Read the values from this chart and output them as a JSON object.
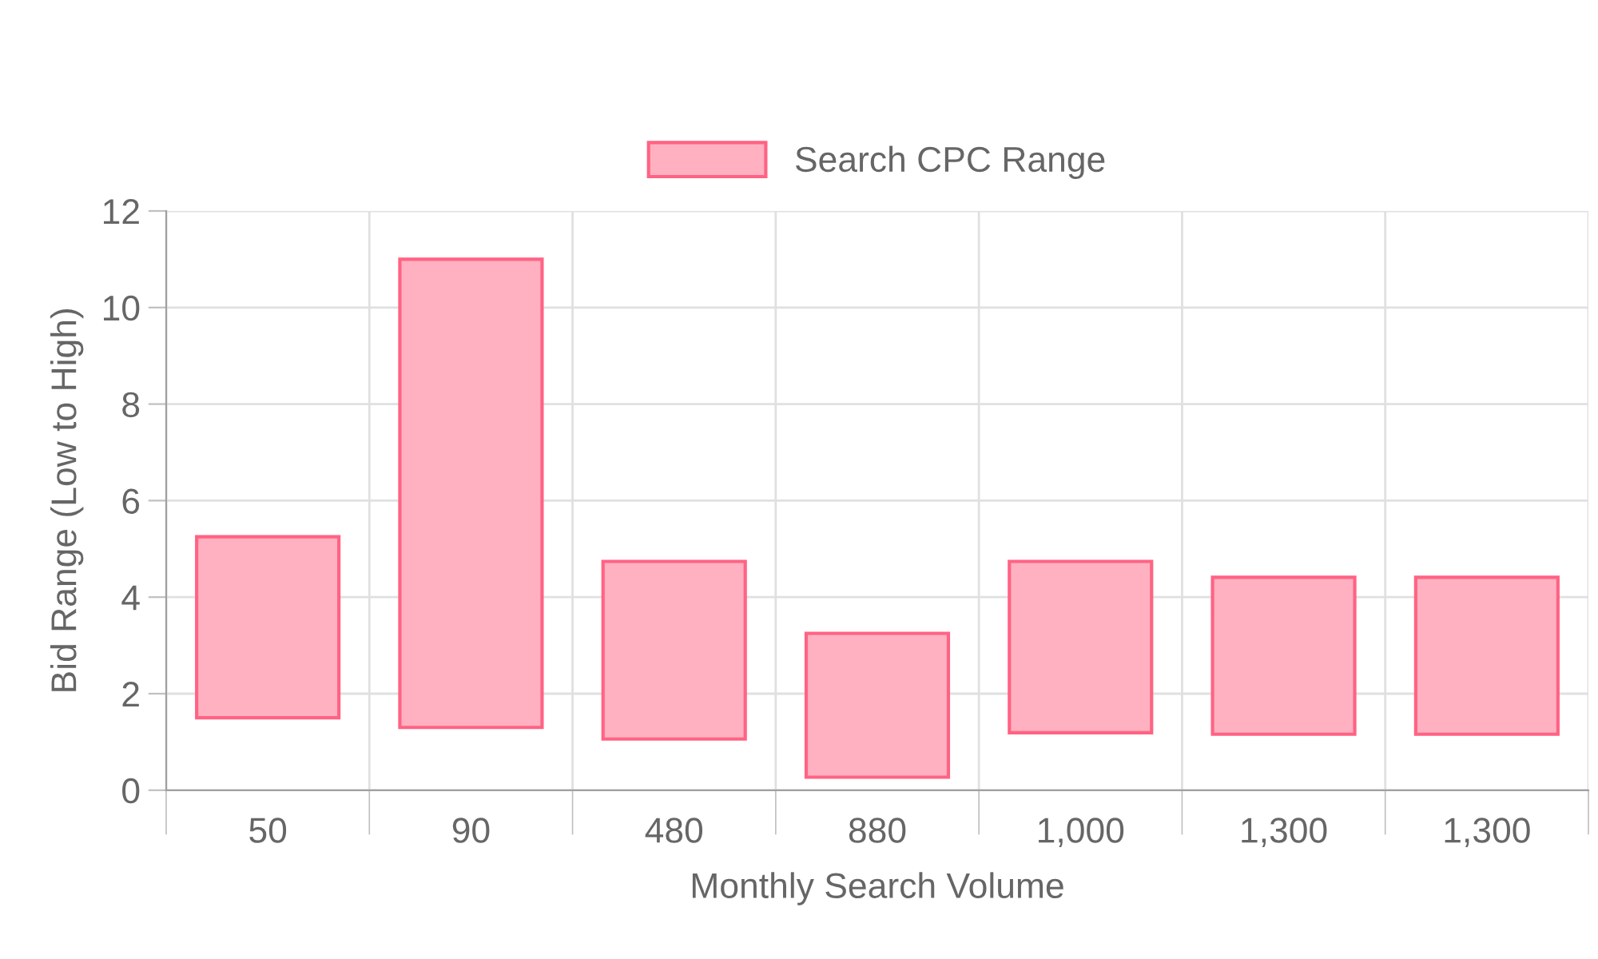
{
  "chart_data": {
    "type": "bar",
    "xlabel": "Monthly Search Volume",
    "ylabel": "Bid Range (Low to High)",
    "categories": [
      "50",
      "90",
      "480",
      "880",
      "1,000",
      "1,300",
      "1,300"
    ],
    "series": [
      {
        "name": "Search CPC Range",
        "color": "#ffb1c1",
        "values": [
          3.75,
          9.7,
          3.68,
          2.98,
          3.55,
          3.25,
          3.25
        ],
        "base": [
          1.5,
          1.3,
          1.06,
          0.27,
          1.19,
          1.16,
          1.16
        ]
      }
    ],
    "ylim": [
      0,
      12
    ],
    "yticks": [
      0,
      2,
      4,
      6,
      8,
      10,
      12
    ],
    "grid": true,
    "legend": "top"
  }
}
